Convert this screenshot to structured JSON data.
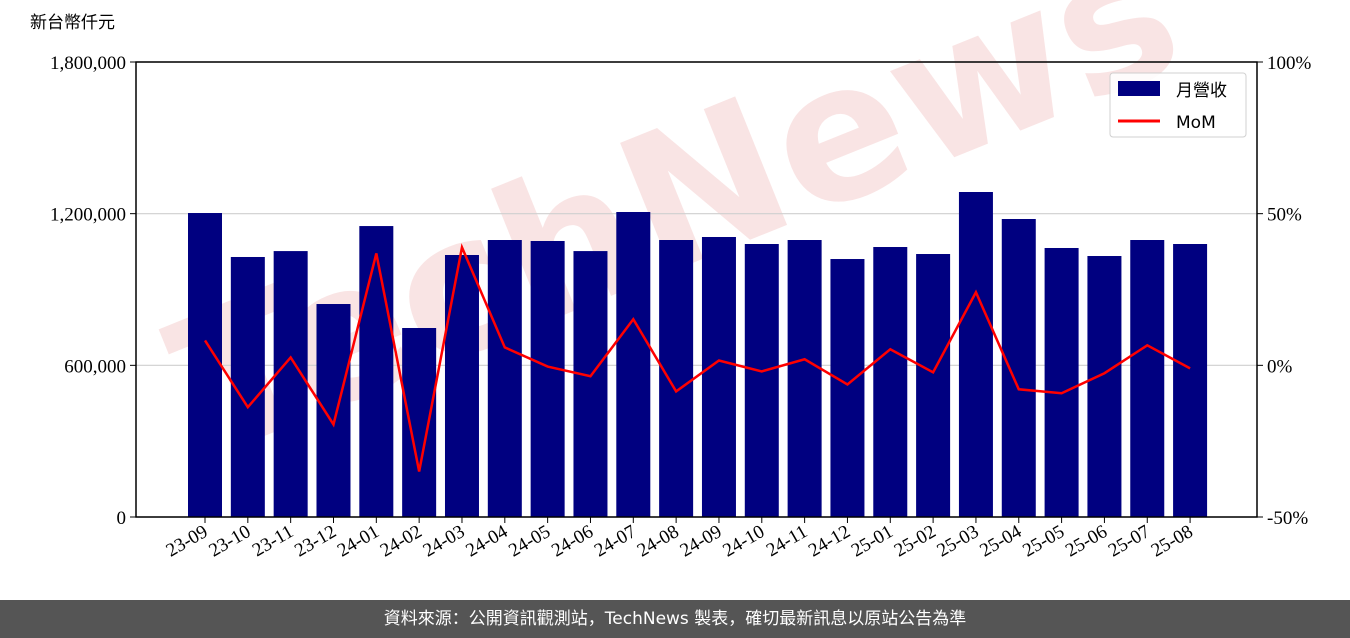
{
  "chart_data": {
    "type": "bar",
    "y_label": "新台幣仟元",
    "watermark": "TechNews",
    "footer": "資料來源：公開資訊觀測站，TechNews 製表，確切最新訊息以原站公告為準",
    "categories": [
      "23-09",
      "23-10",
      "23-11",
      "23-12",
      "24-01",
      "24-02",
      "24-03",
      "24-04",
      "24-05",
      "24-06",
      "24-07",
      "24-08",
      "24-09",
      "24-10",
      "24-11",
      "24-12",
      "25-01",
      "25-02",
      "25-03",
      "25-04",
      "25-05",
      "25-06",
      "25-07",
      "25-08"
    ],
    "series": [
      {
        "name": "月營收",
        "type": "bar",
        "color": "#000080",
        "values": [
          1202600,
          1028600,
          1052000,
          842600,
          1151000,
          747700,
          1036500,
          1095800,
          1091900,
          1052000,
          1206600,
          1095800,
          1107700,
          1080000,
          1095800,
          1020600,
          1068100,
          1040400,
          1285700,
          1178900,
          1064200,
          1032500,
          1095800,
          1080000
        ]
      },
      {
        "name": "MoM",
        "type": "line",
        "color": "#ff0000",
        "axis": "y2",
        "values": [
          8.2,
          -13.8,
          2.6,
          -19.5,
          36.9,
          -35,
          38.9,
          5.9,
          -0.4,
          -3.6,
          15.2,
          -8.6,
          1.6,
          -2.0,
          2.0,
          -6.3,
          5.3,
          -2.3,
          24.1,
          -7.9,
          -9.2,
          -2.6,
          6.6,
          -1.0
        ]
      }
    ],
    "ylim": [
      0,
      1800000
    ],
    "yticks": [
      {
        "value": 0,
        "label": "0"
      },
      {
        "value": 600000,
        "label": "600,000"
      },
      {
        "value": 1200000,
        "label": "1,200,000"
      },
      {
        "value": 1800000,
        "label": "1,800,000"
      }
    ],
    "y2lim": [
      -50,
      100
    ],
    "y2ticks": [
      {
        "value": -50,
        "label": "-50%"
      },
      {
        "value": 0,
        "label": "0%"
      },
      {
        "value": 50,
        "label": "50%"
      },
      {
        "value": 100,
        "label": "100%"
      }
    ],
    "grid": true,
    "legend": "upper right"
  }
}
